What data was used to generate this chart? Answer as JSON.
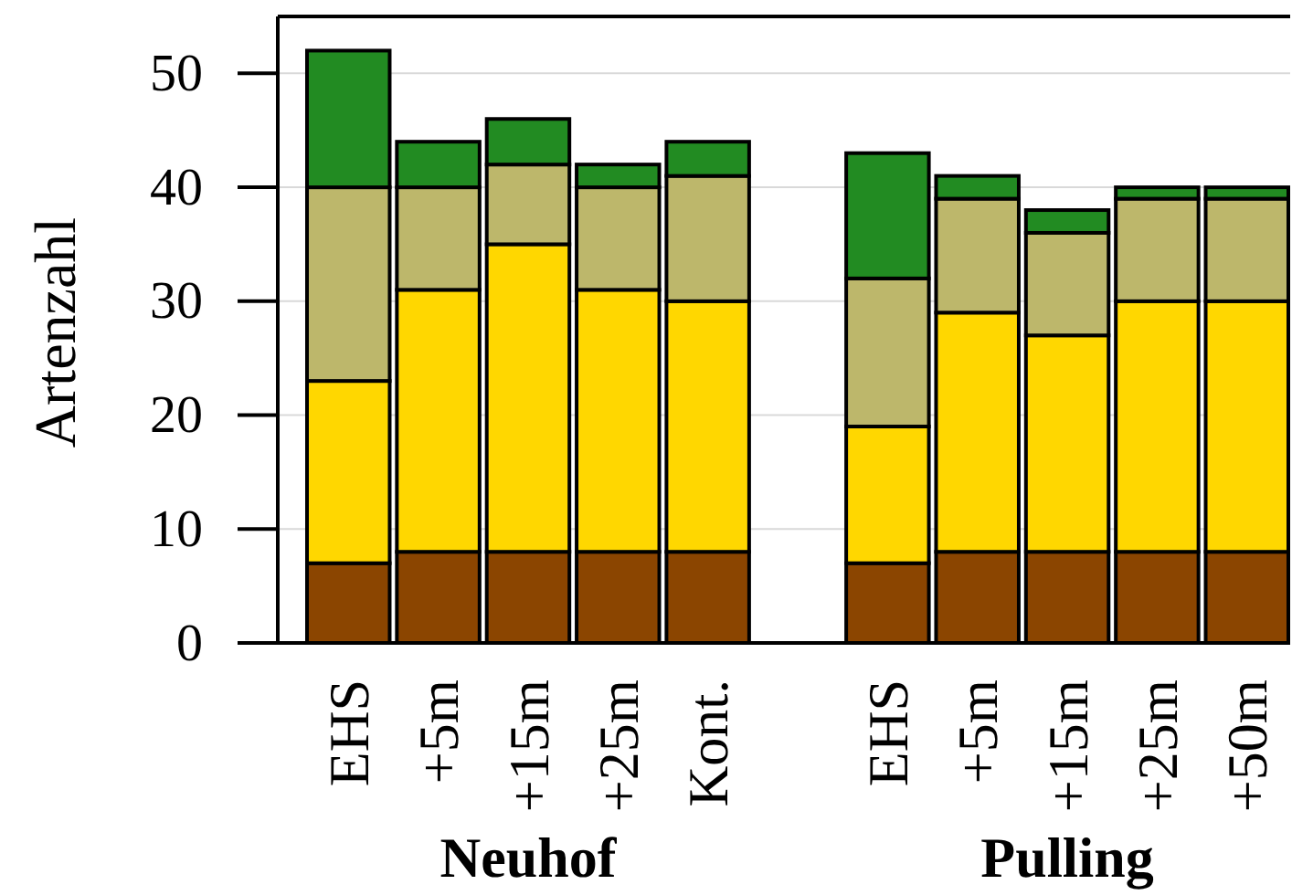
{
  "chart_data": {
    "type": "bar",
    "stacked": true,
    "ylabel": "Artenzahl",
    "categories": [
      "EHS",
      "+5m",
      "+15m",
      "+25m",
      "Kont.",
      null,
      "EHS",
      "+5m",
      "+15m",
      "+25m",
      "+50m"
    ],
    "series": [
      {
        "color": "#8b4500",
        "values": [
          7,
          8,
          8,
          8,
          8,
          null,
          7,
          8,
          8,
          8,
          8
        ]
      },
      {
        "color": "#ffd700",
        "values": [
          16,
          23,
          27,
          23,
          22,
          null,
          12,
          21,
          19,
          22,
          22
        ]
      },
      {
        "color": "#bdb76b",
        "values": [
          17,
          9,
          7,
          9,
          11,
          null,
          13,
          10,
          9,
          9,
          9
        ]
      },
      {
        "color": "#228b22",
        "values": [
          12,
          4,
          4,
          2,
          3,
          null,
          11,
          2,
          2,
          1,
          1
        ]
      }
    ],
    "ylim": [
      0,
      55
    ],
    "yticks": [
      0,
      10,
      20,
      30,
      40,
      50
    ],
    "grid": "y",
    "annotations": [
      "Neuhof",
      "Pulling"
    ]
  }
}
